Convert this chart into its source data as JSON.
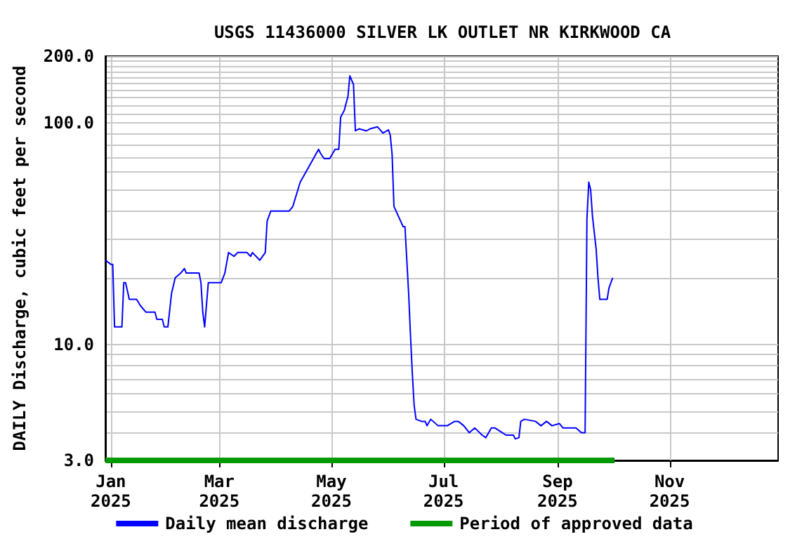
{
  "chart_data": {
    "type": "line",
    "title": "USGS 11436000 SILVER LK OUTLET NR KIRKWOOD CA",
    "ylabel": "DAILY Discharge, cubic feet per second",
    "log": "y",
    "grid": true,
    "legend": "bottom",
    "marker": "none",
    "line_style": "solid",
    "xlim": [
      "2024-12-29",
      "2025-12-30"
    ],
    "xticks": [
      {
        "value": "2025-01-01",
        "label": "Jan\n2025"
      },
      {
        "value": "2025-03-01",
        "label": "Mar\n2025"
      },
      {
        "value": "2025-05-01",
        "label": "May\n2025"
      },
      {
        "value": "2025-07-01",
        "label": "Jul\n2025"
      },
      {
        "value": "2025-09-01",
        "label": "Sep\n2025"
      },
      {
        "value": "2025-11-01",
        "label": "Nov\n2025"
      }
    ],
    "ylim": [
      3,
      200
    ],
    "yticks": [
      {
        "value": 3,
        "label": "3.0"
      },
      {
        "value": 4,
        "label": null
      },
      {
        "value": 5,
        "label": null
      },
      {
        "value": 6,
        "label": null
      },
      {
        "value": 7,
        "label": null
      },
      {
        "value": 8,
        "label": null
      },
      {
        "value": 9,
        "label": null
      },
      {
        "value": 10,
        "label": "10.0"
      },
      {
        "value": 20,
        "label": null
      },
      {
        "value": 30,
        "label": null
      },
      {
        "value": 40,
        "label": null
      },
      {
        "value": 50,
        "label": null
      },
      {
        "value": 60,
        "label": null
      },
      {
        "value": 70,
        "label": null
      },
      {
        "value": 80,
        "label": null
      },
      {
        "value": 90,
        "label": null
      },
      {
        "value": 100,
        "label": "100.0"
      },
      {
        "value": 110,
        "label": null
      },
      {
        "value": 120,
        "label": null
      },
      {
        "value": 130,
        "label": null
      },
      {
        "value": 140,
        "label": null
      },
      {
        "value": 150,
        "label": null
      },
      {
        "value": 160,
        "label": null
      },
      {
        "value": 170,
        "label": null
      },
      {
        "value": 180,
        "label": null
      },
      {
        "value": 190,
        "label": null
      },
      {
        "value": 200,
        "label": "200.0"
      }
    ],
    "series": [
      {
        "name": "Daily mean discharge",
        "color": "#0000ff",
        "x": [
          "2024-12-29",
          "2025-01-01",
          "2025-01-02",
          "2025-01-03",
          "2025-01-07",
          "2025-01-08",
          "2025-01-09",
          "2025-01-11",
          "2025-01-15",
          "2025-01-17",
          "2025-01-20",
          "2025-01-25",
          "2025-01-26",
          "2025-01-29",
          "2025-01-30",
          "2025-02-01",
          "2025-02-03",
          "2025-02-05",
          "2025-02-08",
          "2025-02-10",
          "2025-02-11",
          "2025-02-18",
          "2025-02-19",
          "2025-02-20",
          "2025-02-21",
          "2025-02-23",
          "2025-03-02",
          "2025-03-04",
          "2025-03-06",
          "2025-03-09",
          "2025-03-11",
          "2025-03-16",
          "2025-03-18",
          "2025-03-19",
          "2025-03-23",
          "2025-03-26",
          "2025-03-27",
          "2025-03-29",
          "2025-04-08",
          "2025-04-10",
          "2025-04-14",
          "2025-04-19",
          "2025-04-24",
          "2025-04-25",
          "2025-04-27",
          "2025-04-30",
          "2025-05-03",
          "2025-05-05",
          "2025-05-06",
          "2025-05-08",
          "2025-05-10",
          "2025-05-11",
          "2025-05-13",
          "2025-05-14",
          "2025-05-16",
          "2025-05-20",
          "2025-05-22",
          "2025-05-26",
          "2025-05-29",
          "2025-06-01",
          "2025-06-02",
          "2025-06-03",
          "2025-06-04",
          "2025-06-07",
          "2025-06-09",
          "2025-06-10",
          "2025-06-11",
          "2025-06-12",
          "2025-06-13",
          "2025-06-14",
          "2025-06-15",
          "2025-06-16",
          "2025-06-19",
          "2025-06-21",
          "2025-06-22",
          "2025-06-24",
          "2025-06-28",
          "2025-07-03",
          "2025-07-07",
          "2025-07-09",
          "2025-07-12",
          "2025-07-15",
          "2025-07-18",
          "2025-07-22",
          "2025-07-24",
          "2025-07-27",
          "2025-07-29",
          "2025-08-02",
          "2025-08-04",
          "2025-08-08",
          "2025-08-09",
          "2025-08-11",
          "2025-08-12",
          "2025-08-14",
          "2025-08-20",
          "2025-08-23",
          "2025-08-26",
          "2025-08-29",
          "2025-09-02",
          "2025-09-04",
          "2025-09-11",
          "2025-09-14",
          "2025-09-16",
          "2025-09-17",
          "2025-09-18",
          "2025-09-19",
          "2025-09-20",
          "2025-09-21",
          "2025-09-22",
          "2025-09-23",
          "2025-09-24",
          "2025-09-28",
          "2025-09-29",
          "2025-10-01"
        ],
        "values": [
          24,
          23,
          23,
          12,
          12,
          19,
          19,
          16,
          16,
          15,
          14,
          14,
          13,
          13,
          12,
          12,
          17,
          20,
          21,
          22,
          21,
          21,
          19,
          14,
          12,
          19,
          19,
          21,
          26,
          25,
          26,
          26,
          25,
          26,
          24,
          26,
          36,
          40,
          40,
          42,
          54,
          64,
          76,
          73,
          69,
          69,
          76,
          76,
          106,
          114,
          132,
          163,
          149,
          92,
          94,
          92,
          94,
          96,
          90,
          93,
          88,
          72,
          42,
          37,
          34,
          34,
          24,
          17,
          11,
          7.4,
          5.3,
          4.6,
          4.5,
          4.5,
          4.3,
          4.6,
          4.3,
          4.3,
          4.5,
          4.5,
          4.3,
          4.0,
          4.2,
          3.9,
          3.8,
          4.2,
          4.2,
          4.0,
          3.9,
          3.9,
          3.75,
          3.8,
          4.5,
          4.6,
          4.5,
          4.3,
          4.5,
          4.3,
          4.4,
          4.2,
          4.2,
          4.0,
          4.0,
          37,
          54,
          50,
          38,
          32,
          27,
          20,
          16,
          16,
          18,
          20
        ]
      },
      {
        "name": "Period of approved data",
        "color": "#009900",
        "x": [
          "2024-12-29",
          "2025-10-02"
        ],
        "values": [
          3,
          3
        ]
      }
    ]
  }
}
